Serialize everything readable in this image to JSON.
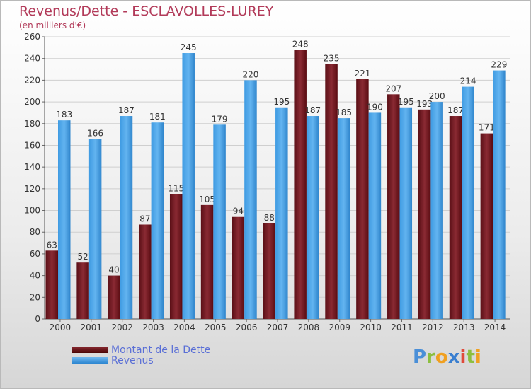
{
  "chart": {
    "title": "Revenus/Dette - ESCLAVOLLES-LUREY",
    "subtitle": "(en milliers d'€)"
  },
  "legend": {
    "debt_label": "Montant de la Dette",
    "revenue_label": "Revenus"
  },
  "logo": {
    "text": "Proxiti",
    "letters": [
      {
        "ch": "P",
        "color": "#4a8fd8"
      },
      {
        "ch": "r",
        "color": "#8cbf3f"
      },
      {
        "ch": "o",
        "color": "#f0a020"
      },
      {
        "ch": "x",
        "color": "#3a7fd0"
      },
      {
        "ch": "i",
        "color": "#e04a3a"
      },
      {
        "ch": "t",
        "color": "#8cbf3f"
      },
      {
        "ch": "i",
        "color": "#f0a020"
      }
    ]
  },
  "colors": {
    "debt": "#7a1f27",
    "revenue": "#4da6e8",
    "title": "#b23a59",
    "legend_text": "#5a6fd6"
  },
  "chart_data": {
    "type": "bar",
    "title": "Revenus/Dette - ESCLAVOLLES-LUREY",
    "subtitle": "(en milliers d'€)",
    "categories": [
      "2000",
      "2001",
      "2002",
      "2003",
      "2004",
      "2005",
      "2006",
      "2007",
      "2008",
      "2009",
      "2010",
      "2011",
      "2012",
      "2013",
      "2014"
    ],
    "series": [
      {
        "name": "Montant de la Dette",
        "values": [
          63,
          52,
          40,
          87,
          115,
          105,
          94,
          88,
          248,
          235,
          221,
          207,
          193,
          187,
          171
        ]
      },
      {
        "name": "Revenus",
        "values": [
          183,
          166,
          187,
          181,
          245,
          179,
          220,
          195,
          187,
          185,
          190,
          195,
          200,
          214,
          229
        ]
      }
    ],
    "ylim": [
      0,
      260
    ],
    "yticks": [
      0,
      20,
      40,
      60,
      80,
      100,
      120,
      140,
      160,
      180,
      200,
      220,
      240,
      260
    ],
    "grid": true,
    "legend_position": "bottom-left"
  }
}
